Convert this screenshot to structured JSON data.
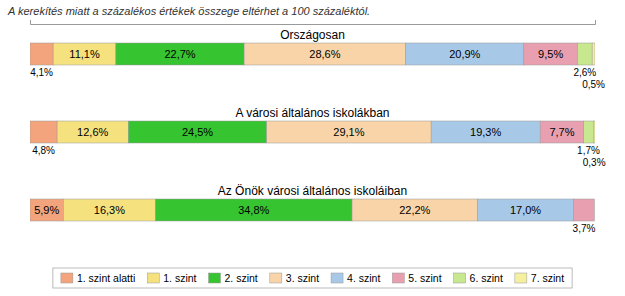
{
  "chart_data": {
    "type": "bar",
    "orientation": "horizontal",
    "stacked": true,
    "subtitle": "A kerekítés miatt a százalékos értékek összege eltérhet a 100 százaléktól.",
    "categories": [
      "Országosan",
      "A városi általános iskolákban",
      "Az Önök városi általános iskoláiban"
    ],
    "series": [
      {
        "name": "1. szint alatti",
        "color": "#F4A47C",
        "values": [
          4.1,
          4.8,
          5.9
        ],
        "value_labels": [
          "4,1%",
          "4,8%",
          "5,9%"
        ]
      },
      {
        "name": "1. szint",
        "color": "#F5E27E",
        "values": [
          11.1,
          12.6,
          16.3
        ],
        "value_labels": [
          "11,1%",
          "12,6%",
          "16,3%"
        ]
      },
      {
        "name": "2. szint",
        "color": "#36C430",
        "values": [
          22.7,
          24.5,
          34.8
        ],
        "value_labels": [
          "22,7%",
          "24,5%",
          "34,8%"
        ]
      },
      {
        "name": "3. szint",
        "color": "#F9D4A8",
        "values": [
          28.6,
          29.1,
          22.2
        ],
        "value_labels": [
          "28,6%",
          "29,1%",
          "22,2%"
        ]
      },
      {
        "name": "4. szint",
        "color": "#A8C8E8",
        "values": [
          20.9,
          19.3,
          17.0
        ],
        "value_labels": [
          "20,9%",
          "19,3%",
          "17,0%"
        ]
      },
      {
        "name": "5. szint",
        "color": "#E8A0B0",
        "values": [
          9.5,
          7.7,
          3.7
        ],
        "value_labels": [
          "9,5%",
          "7,7%",
          "3,7%"
        ]
      },
      {
        "name": "6. szint",
        "color": "#C8E890",
        "values": [
          2.6,
          1.7,
          0.0
        ],
        "value_labels": [
          "2,6%",
          "1,7%",
          null
        ]
      },
      {
        "name": "7. szint",
        "color": "#F5F0A0",
        "values": [
          0.5,
          0.3,
          0.0
        ],
        "value_labels": [
          "0,5%",
          "0,3%",
          null
        ]
      }
    ],
    "xlim": [
      0,
      100
    ],
    "tick_labels": false,
    "data_labels": true,
    "legend": "bottom"
  }
}
